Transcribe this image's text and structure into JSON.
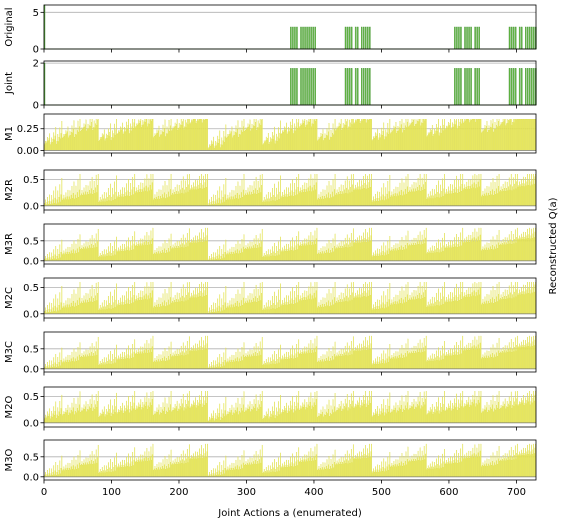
{
  "figure": {
    "xlabel": "Joint Actions a (enumerated)",
    "ylabel_right": "Reconstructed Q(a)"
  },
  "colors": {
    "green": "#6cc04a",
    "green_dark": "#3f8f2e",
    "yellow": "#f4f46a",
    "yellow_dark": "#d8d845",
    "grid": "#b0b0b0"
  },
  "chart_data": [
    {
      "type": "bar",
      "name": "Original",
      "color": "green",
      "ylim": [
        0,
        6
      ],
      "yticks": [
        0,
        5
      ],
      "ytick_labels": [
        "0",
        "5"
      ],
      "xlim": [
        0,
        729
      ],
      "pattern": "sparse",
      "peak": 3.0,
      "first_bar": 6.0,
      "spikes": [
        [
          365,
          3.0
        ],
        [
          368,
          3.0
        ],
        [
          371,
          3.0
        ],
        [
          374,
          3.0
        ],
        [
          380,
          3.0
        ],
        [
          383,
          3.0
        ],
        [
          386,
          3.0
        ],
        [
          389,
          3.0
        ],
        [
          392,
          3.0
        ],
        [
          395,
          3.0
        ],
        [
          398,
          3.0
        ],
        [
          401,
          3.0
        ],
        [
          446,
          3.0
        ],
        [
          449,
          3.0
        ],
        [
          452,
          3.0
        ],
        [
          455,
          3.0
        ],
        [
          461,
          3.0
        ],
        [
          464,
          3.0
        ],
        [
          470,
          3.0
        ],
        [
          473,
          3.0
        ],
        [
          476,
          3.0
        ],
        [
          479,
          3.0
        ],
        [
          482,
          3.0
        ],
        [
          608,
          3.0
        ],
        [
          611,
          3.0
        ],
        [
          614,
          3.0
        ],
        [
          617,
          3.0
        ],
        [
          623,
          3.0
        ],
        [
          626,
          3.0
        ],
        [
          629,
          3.0
        ],
        [
          632,
          3.0
        ],
        [
          638,
          3.0
        ],
        [
          641,
          3.0
        ],
        [
          644,
          3.0
        ],
        [
          689,
          3.0
        ],
        [
          692,
          3.0
        ],
        [
          695,
          3.0
        ],
        [
          698,
          3.0
        ],
        [
          704,
          3.0
        ],
        [
          707,
          3.0
        ],
        [
          713,
          3.0
        ],
        [
          716,
          3.0
        ],
        [
          719,
          3.0
        ],
        [
          722,
          3.0
        ],
        [
          725,
          3.0
        ],
        [
          728,
          3.0
        ]
      ]
    },
    {
      "type": "bar",
      "name": "Joint",
      "color": "green",
      "ylim": [
        0,
        2.1
      ],
      "yticks": [
        0,
        2
      ],
      "ytick_labels": [
        "0",
        "2"
      ],
      "xlim": [
        0,
        729
      ],
      "pattern": "sparse",
      "peak": 1.75,
      "first_bar": 2.0,
      "spikes": [
        [
          365,
          1.75
        ],
        [
          368,
          1.75
        ],
        [
          371,
          1.75
        ],
        [
          374,
          1.75
        ],
        [
          380,
          1.75
        ],
        [
          383,
          1.75
        ],
        [
          386,
          1.75
        ],
        [
          389,
          1.75
        ],
        [
          392,
          1.75
        ],
        [
          395,
          1.75
        ],
        [
          398,
          1.75
        ],
        [
          401,
          1.75
        ],
        [
          446,
          1.75
        ],
        [
          449,
          1.75
        ],
        [
          452,
          1.75
        ],
        [
          455,
          1.75
        ],
        [
          461,
          1.75
        ],
        [
          464,
          1.75
        ],
        [
          470,
          1.75
        ],
        [
          473,
          1.75
        ],
        [
          476,
          1.75
        ],
        [
          479,
          1.75
        ],
        [
          482,
          1.75
        ],
        [
          608,
          1.75
        ],
        [
          611,
          1.75
        ],
        [
          614,
          1.75
        ],
        [
          617,
          1.75
        ],
        [
          623,
          1.75
        ],
        [
          626,
          1.75
        ],
        [
          629,
          1.75
        ],
        [
          632,
          1.75
        ],
        [
          638,
          1.75
        ],
        [
          641,
          1.75
        ],
        [
          644,
          1.75
        ],
        [
          689,
          1.75
        ],
        [
          692,
          1.75
        ],
        [
          695,
          1.75
        ],
        [
          698,
          1.75
        ],
        [
          704,
          1.75
        ],
        [
          707,
          1.75
        ],
        [
          713,
          1.75
        ],
        [
          716,
          1.75
        ],
        [
          719,
          1.75
        ],
        [
          722,
          1.75
        ],
        [
          725,
          1.75
        ],
        [
          728,
          1.75
        ]
      ]
    },
    {
      "type": "bar",
      "name": "M1",
      "color": "yellow",
      "ylim": [
        -0.03,
        0.42
      ],
      "yticks": [
        0.0,
        0.25
      ],
      "ytick_labels": [
        "0.00",
        "0.25"
      ],
      "xlim": [
        0,
        729
      ],
      "pattern": "dense",
      "base": 0.1,
      "amp": 0.25,
      "growth": 0.35,
      "cap": 0.36
    },
    {
      "type": "bar",
      "name": "M2R",
      "color": "yellow",
      "ylim": [
        -0.08,
        0.68
      ],
      "yticks": [
        0.0,
        0.5
      ],
      "ytick_labels": [
        "0.0",
        "0.5"
      ],
      "xlim": [
        0,
        729
      ],
      "pattern": "dense",
      "base": 0.0,
      "amp": 0.55,
      "growth": 0.4,
      "cap": 0.6
    },
    {
      "type": "bar",
      "name": "M3R",
      "color": "yellow",
      "ylim": [
        -0.08,
        0.92
      ],
      "yticks": [
        0.0,
        0.5
      ],
      "ytick_labels": [
        "0.0",
        "0.5"
      ],
      "xlim": [
        0,
        729
      ],
      "pattern": "dense",
      "base": 0.0,
      "amp": 0.55,
      "growth": 0.6,
      "cap": 0.82
    },
    {
      "type": "bar",
      "name": "M2C",
      "color": "yellow",
      "ylim": [
        -0.08,
        0.68
      ],
      "yticks": [
        0.0,
        0.5
      ],
      "ytick_labels": [
        "0.0",
        "0.5"
      ],
      "xlim": [
        0,
        729
      ],
      "pattern": "dense",
      "base": 0.0,
      "amp": 0.55,
      "growth": 0.4,
      "cap": 0.6
    },
    {
      "type": "bar",
      "name": "M3C",
      "color": "yellow",
      "ylim": [
        -0.08,
        0.92
      ],
      "yticks": [
        0.0,
        0.5
      ],
      "ytick_labels": [
        "0.0",
        "0.5"
      ],
      "xlim": [
        0,
        729
      ],
      "pattern": "dense",
      "base": 0.0,
      "amp": 0.55,
      "growth": 0.6,
      "cap": 0.82
    },
    {
      "type": "bar",
      "name": "M2O",
      "color": "yellow",
      "ylim": [
        -0.08,
        0.68
      ],
      "yticks": [
        0.0,
        0.5
      ],
      "ytick_labels": [
        "0.0",
        "0.5"
      ],
      "xlim": [
        0,
        729
      ],
      "pattern": "dense",
      "base": 0.1,
      "amp": 0.45,
      "growth": 0.3,
      "cap": 0.6
    },
    {
      "type": "bar",
      "name": "M3O",
      "color": "yellow",
      "ylim": [
        -0.08,
        0.92
      ],
      "yticks": [
        0.0,
        0.5
      ],
      "ytick_labels": [
        "0.0",
        "0.5"
      ],
      "xlim": [
        0,
        729
      ],
      "pattern": "dense",
      "base": 0.0,
      "amp": 0.55,
      "growth": 0.6,
      "cap": 0.82
    }
  ],
  "xaxis": {
    "ticks": [
      0,
      100,
      200,
      300,
      400,
      500,
      600,
      700
    ],
    "tick_labels": [
      "0",
      "100",
      "200",
      "300",
      "400",
      "500",
      "600",
      "700"
    ]
  }
}
